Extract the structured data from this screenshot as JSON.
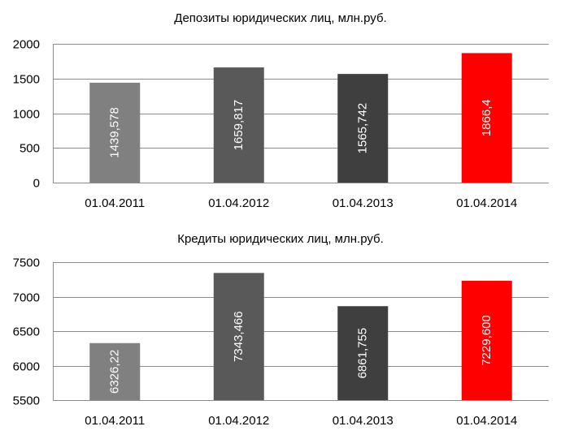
{
  "chart_data": [
    {
      "type": "bar",
      "title": "Депозиты юридических лиц, млн.руб.",
      "categories": [
        "01.04.2011",
        "01.04.2012",
        "01.04.2013",
        "01.04.2014"
      ],
      "values": [
        1439.578,
        1659.817,
        1565.742,
        1866.4
      ],
      "data_labels": [
        "1439,578",
        "1659,817",
        "1565,742",
        "1866,4"
      ],
      "colors": [
        "#808080",
        "#595959",
        "#3f3f3f",
        "#ff0000"
      ],
      "ylim": [
        0,
        2000
      ],
      "yticks": [
        0,
        500,
        1000,
        1500,
        2000
      ],
      "ytick_labels": [
        "0",
        "500",
        "1000",
        "1500",
        "2000"
      ],
      "grid": true,
      "xlabel": "",
      "ylabel": ""
    },
    {
      "type": "bar",
      "title": "Кредиты юридических лиц, млн.руб.",
      "categories": [
        "01.04.2011",
        "01.04.2012",
        "01.04.2013",
        "01.04.2014"
      ],
      "values": [
        6326.22,
        7343.466,
        6861.755,
        7229.6
      ],
      "data_labels": [
        "6326,22",
        "7343,466",
        "6861,755",
        "7229,600"
      ],
      "colors": [
        "#808080",
        "#595959",
        "#3f3f3f",
        "#ff0000"
      ],
      "ylim": [
        5500,
        7500
      ],
      "yticks": [
        5500,
        6000,
        6500,
        7000,
        7500
      ],
      "ytick_labels": [
        "5500",
        "6000",
        "6500",
        "7000",
        "7500"
      ],
      "grid": true,
      "xlabel": "",
      "ylabel": ""
    }
  ]
}
